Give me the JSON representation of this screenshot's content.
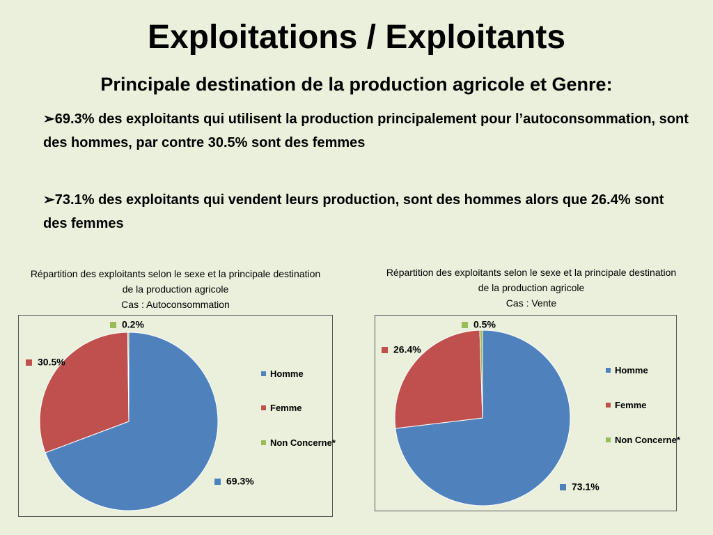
{
  "title": "Exploitations / Exploitants",
  "subtitle": "Principale destination de la production agricole et Genre:",
  "bullets": [
    "69.3% des exploitants qui utilisent la production  principalement pour l’autoconsommation,  sont des hommes, par contre 30.5% sont des femmes",
    "73.1% des exploitants qui vendent leurs production, sont des hommes alors que 26.4% sont des femmes"
  ],
  "chart_data": [
    {
      "type": "pie",
      "title": "Répartition des exploitants selon le sexe et la principale destination de la production agricole",
      "subtitle": "Cas : Autoconsommation",
      "categories": [
        "Homme",
        "Femme",
        "Non Concerne*"
      ],
      "values": [
        69.3,
        30.5,
        0.2
      ],
      "value_labels": [
        "69.3%",
        "30.5%",
        "0.2%"
      ],
      "colors": [
        "#4f81bd",
        "#c0504d",
        "#9bbb59"
      ],
      "legend": "right"
    },
    {
      "type": "pie",
      "title": "Répartition des exploitants selon le sexe et la principale destination de la production agricole",
      "subtitle": "Cas : Vente",
      "categories": [
        "Homme",
        "Femme",
        "Non Concerne*"
      ],
      "values": [
        73.1,
        26.4,
        0.5
      ],
      "value_labels": [
        "73.1%",
        "26.4%",
        "0.5%"
      ],
      "colors": [
        "#4f81bd",
        "#c0504d",
        "#9bbb59"
      ],
      "legend": "right"
    }
  ]
}
